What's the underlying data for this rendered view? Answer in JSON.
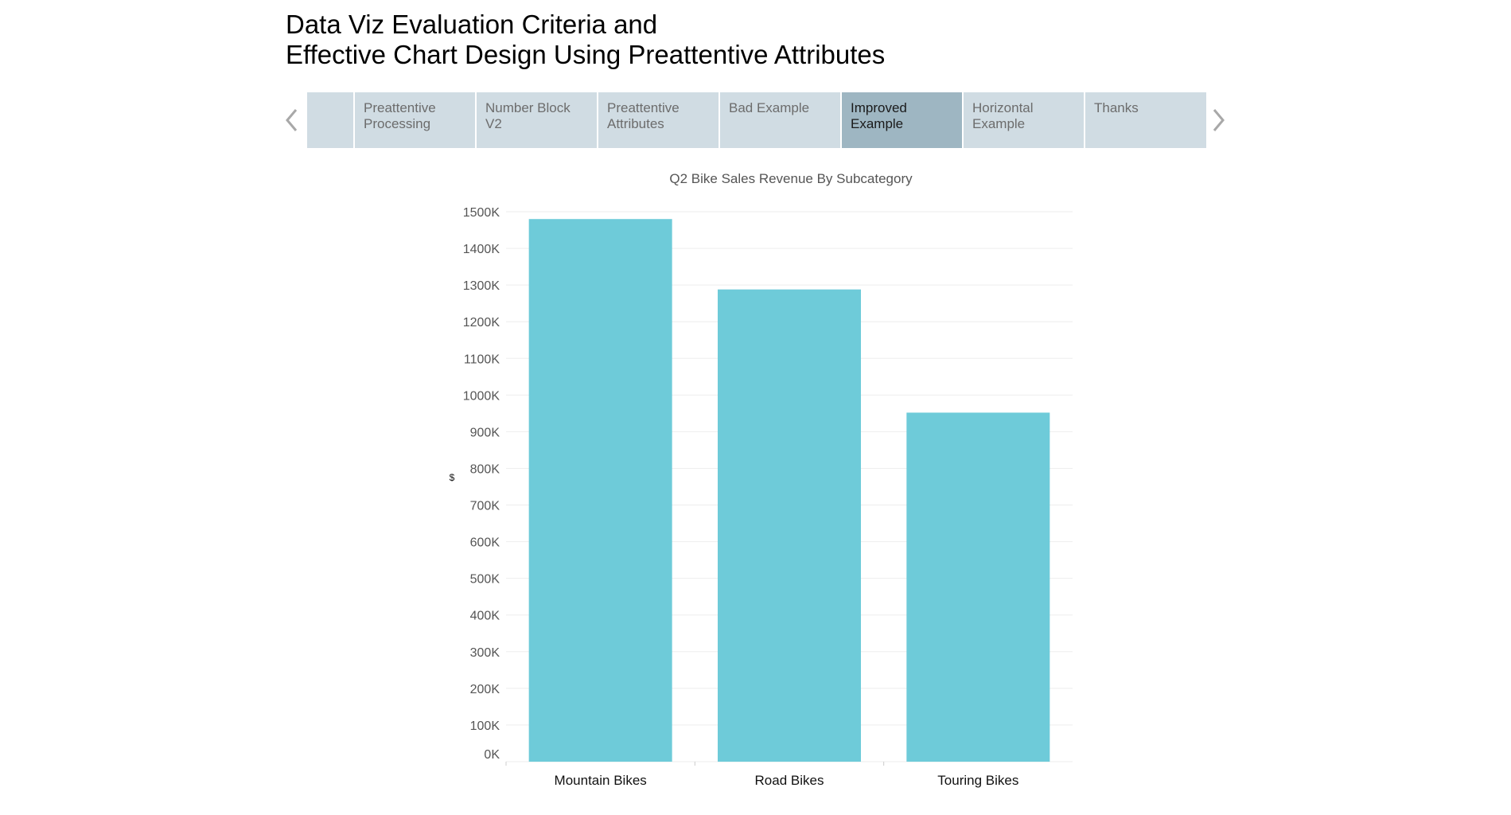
{
  "story": {
    "title_line1": "Data Viz Evaluation Criteria and",
    "title_line2": "Effective Chart Design Using Preattentive Attributes"
  },
  "nav": {
    "prev_icon": "chevron-left-icon",
    "next_icon": "chevron-right-icon",
    "arrow_color": "#a8a8a8",
    "tabs": [
      {
        "label": "",
        "active": false
      },
      {
        "label": "Preattentive Processing",
        "active": false
      },
      {
        "label": "Number Block V2",
        "active": false
      },
      {
        "label": "Preattentive Attributes",
        "active": false
      },
      {
        "label": "Bad Example",
        "active": false
      },
      {
        "label": "Improved Example",
        "active": true
      },
      {
        "label": "Horizontal Example",
        "active": false
      },
      {
        "label": "Thanks",
        "active": false
      }
    ]
  },
  "chart_data": {
    "type": "bar",
    "title": "Q2 Bike Sales Revenue By Subcategory",
    "ylabel": "$",
    "xlabel": "",
    "categories": [
      "Mountain Bikes",
      "Road Bikes",
      "Touring Bikes"
    ],
    "values": [
      1480,
      1288,
      952
    ],
    "value_unit": "K",
    "ylim": [
      0,
      1500
    ],
    "yticks": [
      "0K",
      "100K",
      "200K",
      "300K",
      "400K",
      "500K",
      "600K",
      "700K",
      "800K",
      "900K",
      "1000K",
      "1100K",
      "1200K",
      "1300K",
      "1400K",
      "1500K"
    ],
    "ytick_values": [
      0,
      100,
      200,
      300,
      400,
      500,
      600,
      700,
      800,
      900,
      1000,
      1100,
      1200,
      1300,
      1400,
      1500
    ],
    "grid": true,
    "legend": "none",
    "bar_color": "#6ecbd9",
    "grid_color": "#eeeeee"
  }
}
